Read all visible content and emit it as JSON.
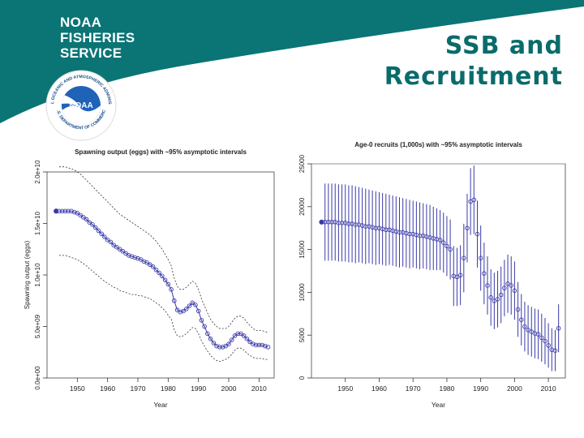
{
  "header": {
    "org_lines": [
      "NOAA",
      "FISHERIES",
      "SERVICE"
    ],
    "title_lines": [
      "SSB and",
      "Recruitment"
    ],
    "logo": {
      "name": "noaa-logo",
      "center_text": "NOAA",
      "ring_text_top": "NATIONAL OCEANIC AND ATMOSPHERIC ADMINISTRATION",
      "ring_text_bottom": "U.S. DEPARTMENT OF COMMERCE"
    }
  },
  "colors": {
    "teal": "#0b7475",
    "title": "#0a6b6b",
    "series": "#3a3aa8",
    "axis": "#333333"
  },
  "chart_data": [
    {
      "type": "line",
      "title": "Spawning output (eggs) with ~95% asymptotic intervals",
      "xlabel": "Year",
      "ylabel": "Spawning output (eggs)",
      "xlim": [
        1940,
        2015
      ],
      "ylim": [
        0,
        20000000000
      ],
      "xticks": [
        1950,
        1960,
        1970,
        1980,
        1990,
        2000,
        2010
      ],
      "yticks": [
        0,
        5000000000,
        10000000000,
        15000000000,
        20000000000
      ],
      "ytick_labels": [
        "0.0e+00",
        "5.0e+09",
        "1.0e+10",
        "1.5e+10",
        "2.0e+10"
      ],
      "initial_year": 1943,
      "initial_value": 16200000000,
      "years": [
        1944,
        1945,
        1946,
        1947,
        1948,
        1949,
        1950,
        1951,
        1952,
        1953,
        1954,
        1955,
        1956,
        1957,
        1958,
        1959,
        1960,
        1961,
        1962,
        1963,
        1964,
        1965,
        1966,
        1967,
        1968,
        1969,
        1970,
        1971,
        1972,
        1973,
        1974,
        1975,
        1976,
        1977,
        1978,
        1979,
        1980,
        1981,
        1982,
        1983,
        1984,
        1985,
        1986,
        1987,
        1988,
        1989,
        1990,
        1991,
        1992,
        1993,
        1994,
        1995,
        1996,
        1997,
        1998,
        1999,
        2000,
        2001,
        2002,
        2003,
        2004,
        2005,
        2006,
        2007,
        2008,
        2009,
        2010,
        2011,
        2012,
        2013
      ],
      "values": [
        16200000000,
        16200000000,
        16200000000,
        16200000000,
        16200000000,
        16100000000,
        16000000000,
        15800000000,
        15600000000,
        15400000000,
        15100000000,
        14900000000,
        14600000000,
        14300000000,
        14000000000,
        13700000000,
        13400000000,
        13200000000,
        12900000000,
        12700000000,
        12500000000,
        12300000000,
        12100000000,
        11900000000,
        11800000000,
        11700000000,
        11600000000,
        11500000000,
        11300000000,
        11200000000,
        11000000000,
        10800000000,
        10500000000,
        10200000000,
        9900000000,
        9500000000,
        9100000000,
        8600000000,
        7500000000,
        6600000000,
        6400000000,
        6500000000,
        6700000000,
        7000000000,
        7300000000,
        7100000000,
        6500000000,
        5600000000,
        5000000000,
        4300000000,
        3800000000,
        3400000000,
        3100000000,
        3000000000,
        3000000000,
        3100000000,
        3300000000,
        3700000000,
        4100000000,
        4300000000,
        4300000000,
        4100000000,
        3800000000,
        3500000000,
        3300000000,
        3200000000,
        3200000000,
        3200000000,
        3100000000,
        3000000000
      ],
      "upper": [
        20500000000,
        20500000000,
        20500000000,
        20400000000,
        20300000000,
        20200000000,
        20000000000,
        19800000000,
        19500000000,
        19200000000,
        18900000000,
        18600000000,
        18300000000,
        18000000000,
        17700000000,
        17400000000,
        17100000000,
        16800000000,
        16500000000,
        16200000000,
        15900000000,
        15700000000,
        15500000000,
        15300000000,
        15100000000,
        14900000000,
        14700000000,
        14500000000,
        14300000000,
        14100000000,
        13900000000,
        13600000000,
        13300000000,
        12900000000,
        12500000000,
        12000000000,
        11500000000,
        10900000000,
        9700000000,
        8900000000,
        8600000000,
        8600000000,
        8800000000,
        9100000000,
        9400000000,
        9200000000,
        8600000000,
        7700000000,
        7000000000,
        6300000000,
        5700000000,
        5300000000,
        5000000000,
        4800000000,
        4800000000,
        4800000000,
        5000000000,
        5400000000,
        5800000000,
        6000000000,
        6000000000,
        5800000000,
        5400000000,
        5100000000,
        4800000000,
        4600000000,
        4600000000,
        4600000000,
        4500000000,
        4400000000
      ],
      "lower": [
        11900000000,
        11900000000,
        11900000000,
        11800000000,
        11700000000,
        11600000000,
        11500000000,
        11300000000,
        11100000000,
        10900000000,
        10600000000,
        10400000000,
        10100000000,
        9900000000,
        9600000000,
        9400000000,
        9200000000,
        9000000000,
        8800000000,
        8700000000,
        8500000000,
        8400000000,
        8300000000,
        8200000000,
        8100000000,
        8100000000,
        8000000000,
        8000000000,
        7900000000,
        7800000000,
        7700000000,
        7500000000,
        7300000000,
        7100000000,
        6800000000,
        6500000000,
        6100000000,
        5700000000,
        4700000000,
        4100000000,
        4000000000,
        4100000000,
        4300000000,
        4600000000,
        4900000000,
        4800000000,
        4300000000,
        3600000000,
        3100000000,
        2600000000,
        2200000000,
        1900000000,
        1700000000,
        1600000000,
        1700000000,
        1800000000,
        2000000000,
        2300000000,
        2700000000,
        2900000000,
        2900000000,
        2700000000,
        2400000000,
        2200000000,
        2000000000,
        1900000000,
        1900000000,
        1900000000,
        1800000000,
        1800000000
      ]
    },
    {
      "type": "scatter",
      "title": "Age-0 recruits (1,000s) with ~95% asymptotic intervals",
      "xlabel": "Year",
      "ylabel": "",
      "xlim": [
        1940,
        2015
      ],
      "ylim": [
        0,
        25000
      ],
      "xticks": [
        1950,
        1960,
        1970,
        1980,
        1990,
        2000,
        2010
      ],
      "yticks": [
        0,
        5000,
        10000,
        15000,
        20000,
        25000
      ],
      "initial_year": 1943,
      "initial_value": 18200,
      "years": [
        1944,
        1945,
        1946,
        1947,
        1948,
        1949,
        1950,
        1951,
        1952,
        1953,
        1954,
        1955,
        1956,
        1957,
        1958,
        1959,
        1960,
        1961,
        1962,
        1963,
        1964,
        1965,
        1966,
        1967,
        1968,
        1969,
        1970,
        1971,
        1972,
        1973,
        1974,
        1975,
        1976,
        1977,
        1978,
        1979,
        1980,
        1981,
        1982,
        1983,
        1984,
        1985,
        1986,
        1987,
        1988,
        1989,
        1990,
        1991,
        1992,
        1993,
        1994,
        1995,
        1996,
        1997,
        1998,
        1999,
        2000,
        2001,
        2002,
        2003,
        2004,
        2005,
        2006,
        2007,
        2008,
        2009,
        2010,
        2011,
        2012,
        2013
      ],
      "values": [
        18200,
        18200,
        18200,
        18200,
        18100,
        18100,
        18100,
        18000,
        18000,
        17900,
        17900,
        17800,
        17700,
        17700,
        17600,
        17500,
        17500,
        17400,
        17300,
        17300,
        17200,
        17100,
        17000,
        17000,
        16900,
        16800,
        16800,
        16700,
        16600,
        16600,
        16500,
        16400,
        16300,
        16200,
        16100,
        15800,
        15400,
        15000,
        11900,
        11800,
        12000,
        14000,
        17500,
        20600,
        20800,
        16800,
        14000,
        12200,
        10800,
        9400,
        9000,
        9200,
        9700,
        10500,
        11000,
        10800,
        10200,
        8000,
        6800,
        6000,
        5600,
        5400,
        5200,
        5100,
        4700,
        4300,
        3800,
        3300,
        3200,
        5800
      ],
      "upper": [
        22700,
        22700,
        22700,
        22700,
        22600,
        22600,
        22600,
        22500,
        22500,
        22400,
        22300,
        22200,
        22100,
        22000,
        21900,
        21800,
        21700,
        21600,
        21500,
        21400,
        21300,
        21200,
        21100,
        21000,
        20900,
        20800,
        20700,
        20600,
        20500,
        20400,
        20300,
        20200,
        20000,
        19800,
        19600,
        19300,
        18900,
        18500,
        15400,
        15200,
        15500,
        18000,
        21500,
        24500,
        24800,
        20700,
        17800,
        15800,
        14200,
        12700,
        12300,
        12500,
        13000,
        13800,
        14400,
        14200,
        13600,
        11200,
        9800,
        8900,
        8500,
        8300,
        8100,
        8000,
        7500,
        7000,
        6400,
        5800,
        5600,
        8600
      ],
      "lower": [
        13700,
        13700,
        13700,
        13700,
        13600,
        13600,
        13600,
        13500,
        13500,
        13400,
        13500,
        13400,
        13300,
        13400,
        13300,
        13200,
        13300,
        13200,
        13100,
        13200,
        13100,
        13000,
        12900,
        13000,
        12900,
        12800,
        12900,
        12800,
        12700,
        12800,
        12700,
        12600,
        12600,
        12600,
        12600,
        12300,
        11900,
        11500,
        8400,
        8400,
        8500,
        10000,
        13500,
        16700,
        16800,
        12900,
        10200,
        8600,
        7400,
        6100,
        5700,
        5900,
        6400,
        7200,
        7600,
        7400,
        6800,
        4800,
        3800,
        3100,
        2700,
        2500,
        2300,
        2200,
        1900,
        1600,
        1200,
        800,
        800,
        3000
      ],
      "hline": 25000,
      "hline_label": ""
    }
  ]
}
